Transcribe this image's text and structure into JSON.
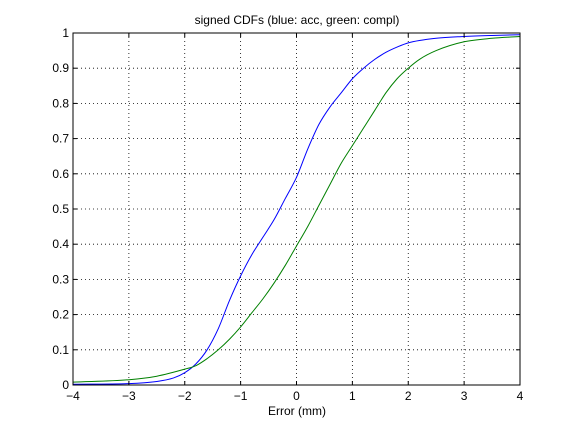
{
  "chart_data": {
    "type": "line",
    "title": "signed CDFs (blue: acc, green: compl)",
    "xlabel": "Error (mm)",
    "ylabel": "",
    "xlim": [
      -4,
      4
    ],
    "ylim": [
      0,
      1
    ],
    "grid": true,
    "legend": "none",
    "xticks": [
      -4,
      -3,
      -2,
      -1,
      0,
      1,
      2,
      3,
      4
    ],
    "xtick_labels": [
      "−4",
      "−3",
      "−2",
      "−1",
      "0",
      "1",
      "2",
      "3",
      "4"
    ],
    "yticks": [
      0,
      0.1,
      0.2,
      0.3,
      0.4,
      0.5,
      0.6,
      0.7,
      0.8,
      0.9,
      1
    ],
    "ytick_labels": [
      "0",
      "0.1",
      "0.2",
      "0.3",
      "0.4",
      "0.5",
      "0.6",
      "0.7",
      "0.8",
      "0.9",
      "1"
    ],
    "series": [
      {
        "color": "#0000ff",
        "x": [
          -4,
          -3,
          -2.5,
          -2.2,
          -2,
          -1.8,
          -1.6,
          -1.4,
          -1.2,
          -1,
          -0.8,
          -0.6,
          -0.4,
          -0.2,
          0,
          0.2,
          0.4,
          0.6,
          0.8,
          1,
          1.2,
          1.4,
          1.6,
          1.8,
          2,
          2.5,
          3,
          3.5,
          4
        ],
        "y": [
          0.002,
          0.004,
          0.01,
          0.02,
          0.035,
          0.06,
          0.1,
          0.16,
          0.24,
          0.31,
          0.37,
          0.42,
          0.47,
          0.53,
          0.59,
          0.67,
          0.74,
          0.79,
          0.83,
          0.87,
          0.9,
          0.925,
          0.945,
          0.96,
          0.972,
          0.985,
          0.99,
          0.993,
          0.995
        ]
      },
      {
        "color": "#008000",
        "x": [
          -4,
          -3,
          -2.5,
          -2,
          -1.8,
          -1.6,
          -1.4,
          -1.2,
          -1,
          -0.8,
          -0.6,
          -0.4,
          -0.2,
          0,
          0.2,
          0.4,
          0.6,
          0.8,
          1,
          1.2,
          1.4,
          1.6,
          1.8,
          2,
          2.2,
          2.5,
          3,
          3.5,
          4
        ],
        "y": [
          0.008,
          0.015,
          0.025,
          0.045,
          0.055,
          0.075,
          0.1,
          0.13,
          0.165,
          0.205,
          0.245,
          0.29,
          0.34,
          0.395,
          0.45,
          0.51,
          0.57,
          0.63,
          0.68,
          0.73,
          0.78,
          0.83,
          0.87,
          0.9,
          0.925,
          0.95,
          0.975,
          0.985,
          0.99
        ]
      }
    ]
  }
}
